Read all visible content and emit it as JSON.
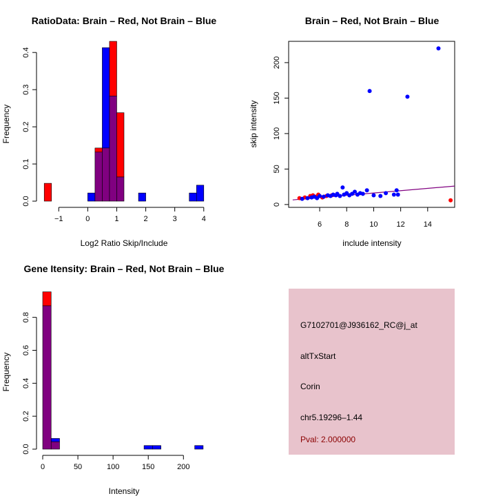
{
  "colors": {
    "red": "#ff0000",
    "blue": "#0000ff",
    "purple": "#800080",
    "panel": "#e8c3cc"
  },
  "chart_data": [
    {
      "type": "bar",
      "title": "RatioData: Brain – Red, Not Brain – Blue",
      "xlabel": "Log2 Ratio Skip/Include",
      "ylabel": "Frequency",
      "xlim": [
        -1.6,
        4.1
      ],
      "ylim": [
        0,
        0.43
      ],
      "xticks": [
        -1,
        0,
        1,
        2,
        3,
        4
      ],
      "yticks": [
        0.0,
        0.1,
        0.2,
        0.3,
        0.4
      ],
      "bin_edges": [
        -1.5,
        -1.25,
        -1.0,
        -0.75,
        -0.5,
        -0.25,
        0.0,
        0.25,
        0.5,
        0.75,
        1.0,
        1.25,
        1.5,
        1.75,
        2.0,
        2.25,
        2.5,
        2.75,
        3.0,
        3.25,
        3.5,
        3.75,
        4.0
      ],
      "series": [
        {
          "name": "Brain",
          "color": "red",
          "values": [
            0.048,
            0,
            0,
            0,
            0,
            0,
            0,
            0.143,
            0.143,
            0.43,
            0.238,
            0,
            0,
            0,
            0,
            0,
            0,
            0,
            0,
            0,
            0,
            0
          ]
        },
        {
          "name": "Not Brain",
          "color": "blue",
          "values": [
            0,
            0,
            0,
            0,
            0,
            0,
            0.022,
            0.132,
            0.413,
            0.283,
            0.065,
            0,
            0,
            0.022,
            0,
            0,
            0,
            0,
            0,
            0,
            0.022,
            0.043
          ]
        }
      ]
    },
    {
      "type": "scatter",
      "title": "Brain – Red, Not Brain – Blue",
      "xlabel": "include intensity",
      "ylabel": "skip intensity",
      "xlim": [
        3.7,
        16.0
      ],
      "ylim": [
        -4,
        230
      ],
      "xticks": [
        6,
        8,
        10,
        12,
        14
      ],
      "yticks": [
        0,
        50,
        100,
        150,
        200
      ],
      "fit_line": {
        "x": [
          4.0,
          16.0
        ],
        "y": [
          6.5,
          26.0
        ]
      },
      "series": [
        {
          "name": "Brain",
          "color": "red",
          "points": [
            [
              4.5,
              9
            ],
            [
              4.9,
              10
            ],
            [
              5.3,
              12
            ],
            [
              5.5,
              13
            ],
            [
              5.7,
              11
            ],
            [
              5.9,
              14
            ],
            [
              6.2,
              10
            ],
            [
              6.5,
              12
            ],
            [
              6.9,
              13
            ],
            [
              15.7,
              6
            ]
          ]
        },
        {
          "name": "Not Brain",
          "color": "blue",
          "points": [
            [
              4.7,
              8
            ],
            [
              5.1,
              9
            ],
            [
              5.4,
              10
            ],
            [
              5.6,
              11
            ],
            [
              5.8,
              9
            ],
            [
              6.0,
              12
            ],
            [
              6.3,
              11
            ],
            [
              6.6,
              13
            ],
            [
              6.8,
              12
            ],
            [
              7.0,
              14
            ],
            [
              7.2,
              13
            ],
            [
              7.3,
              15
            ],
            [
              7.5,
              12
            ],
            [
              7.7,
              24
            ],
            [
              7.8,
              14
            ],
            [
              8.0,
              16
            ],
            [
              8.2,
              13
            ],
            [
              8.4,
              15
            ],
            [
              8.6,
              18
            ],
            [
              8.8,
              14
            ],
            [
              9.0,
              16
            ],
            [
              9.2,
              15
            ],
            [
              9.5,
              20
            ],
            [
              9.7,
              160
            ],
            [
              10.0,
              13
            ],
            [
              10.5,
              12
            ],
            [
              10.9,
              16
            ],
            [
              11.5,
              14
            ],
            [
              11.7,
              20
            ],
            [
              11.8,
              14
            ],
            [
              12.5,
              152
            ],
            [
              14.8,
              220
            ]
          ]
        }
      ]
    },
    {
      "type": "bar",
      "title": "Gene Itensity: Brain – Red, Not Brain – Blue",
      "xlabel": "Intensity",
      "ylabel": "Frequency",
      "xlim": [
        0,
        233
      ],
      "ylim": [
        0,
        0.97
      ],
      "xticks": [
        0,
        50,
        100,
        150,
        200
      ],
      "yticks": [
        0.0,
        0.2,
        0.4,
        0.6,
        0.8
      ],
      "bin_edges": [
        0,
        12,
        24,
        36,
        48,
        60,
        72,
        84,
        96,
        108,
        120,
        132,
        144,
        156,
        168,
        180,
        192,
        204,
        216,
        228
      ],
      "series": [
        {
          "name": "Brain",
          "color": "red",
          "values": [
            0.955,
            0.045,
            0,
            0,
            0,
            0,
            0,
            0,
            0,
            0,
            0,
            0,
            0,
            0,
            0,
            0,
            0,
            0,
            0
          ]
        },
        {
          "name": "Not Brain",
          "color": "blue",
          "values": [
            0.87,
            0.065,
            0,
            0,
            0,
            0,
            0,
            0,
            0,
            0,
            0,
            0,
            0.022,
            0.022,
            0,
            0,
            0,
            0,
            0.022
          ]
        }
      ]
    }
  ],
  "info_panel": {
    "probe": "G7102701@J936162_RC@j_at",
    "event": "altTxStart",
    "gene": "Corin",
    "location": "chr5.19296–1.44",
    "pval": "Pval: 2.000000"
  }
}
